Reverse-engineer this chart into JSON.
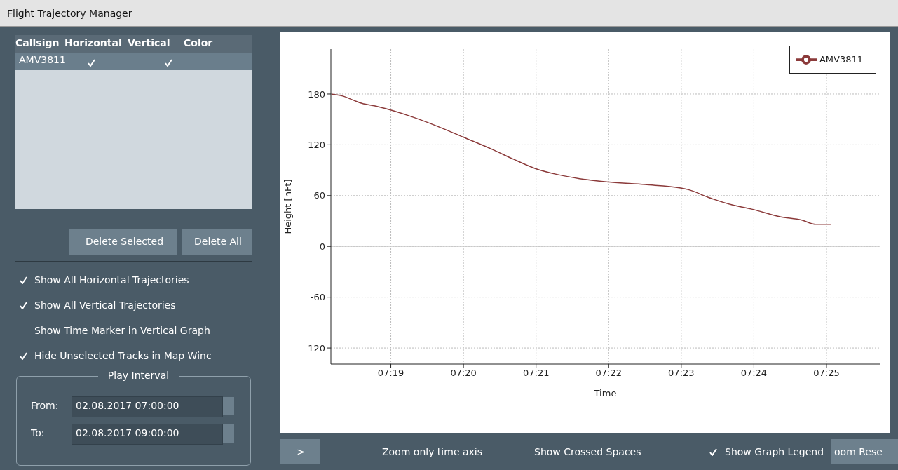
{
  "chart_data": {
    "type": "line",
    "title": "Flight Trajectory Manager",
    "xlabel": "Time",
    "ylabel": "Height [hFt]",
    "x": [
      7.303,
      7.3053,
      7.31,
      7.3137,
      7.321,
      7.3273,
      7.3333,
      7.3402,
      7.3448,
      7.3498,
      7.3548,
      7.36,
      7.3668,
      7.375,
      7.3832,
      7.385,
      7.3895,
      7.395,
      7.3995,
      7.406,
      7.411,
      7.4142,
      7.4178
    ],
    "series": [
      {
        "name": "AMV3811",
        "color": "#8b3a3a",
        "values": [
          180,
          178,
          169,
          165,
          154,
          142,
          129,
          114,
          103,
          92,
          85,
          80,
          76,
          73,
          69,
          67,
          58,
          49,
          44,
          35,
          31,
          26,
          26
        ]
      }
    ],
    "xlim": [
      7.3029,
      7.4289
    ],
    "xticks": [
      {
        "value": 7.316667,
        "label": "07:19"
      },
      {
        "value": 7.333333,
        "label": "07:20"
      },
      {
        "value": 7.35,
        "label": "07:21"
      },
      {
        "value": 7.366667,
        "label": "07:22"
      },
      {
        "value": 7.383333,
        "label": "07:23"
      },
      {
        "value": 7.4,
        "label": "07:24"
      },
      {
        "value": 7.416667,
        "label": "07:25"
      }
    ],
    "ylim": [
      -139,
      233
    ],
    "yticks": [
      -120,
      -60,
      0,
      60,
      120,
      180
    ],
    "ref_lines": [
      {
        "axis": "y",
        "value": 0,
        "color": "#c8c8c8"
      }
    ],
    "grid": true,
    "legend": "top right",
    "annotations": [
      "Callsign",
      "Horizontal",
      "Vertical",
      "Color",
      "AMV3811",
      "Delete Selected",
      "Delete All",
      "Show All Horizontal Trajectories",
      "Show All Vertical Trajectories",
      "Show Time Marker in Vertical Graph",
      "Hide Unselected Tracks in Map Winc",
      "Play Interval",
      "From:",
      "02.08.2017 07:00:00",
      "To:",
      "02.08.2017 09:00:00",
      ">",
      "Zoom only time axis",
      "Show Crossed Spaces",
      "Show Graph Legend",
      "oom Rese"
    ]
  }
}
